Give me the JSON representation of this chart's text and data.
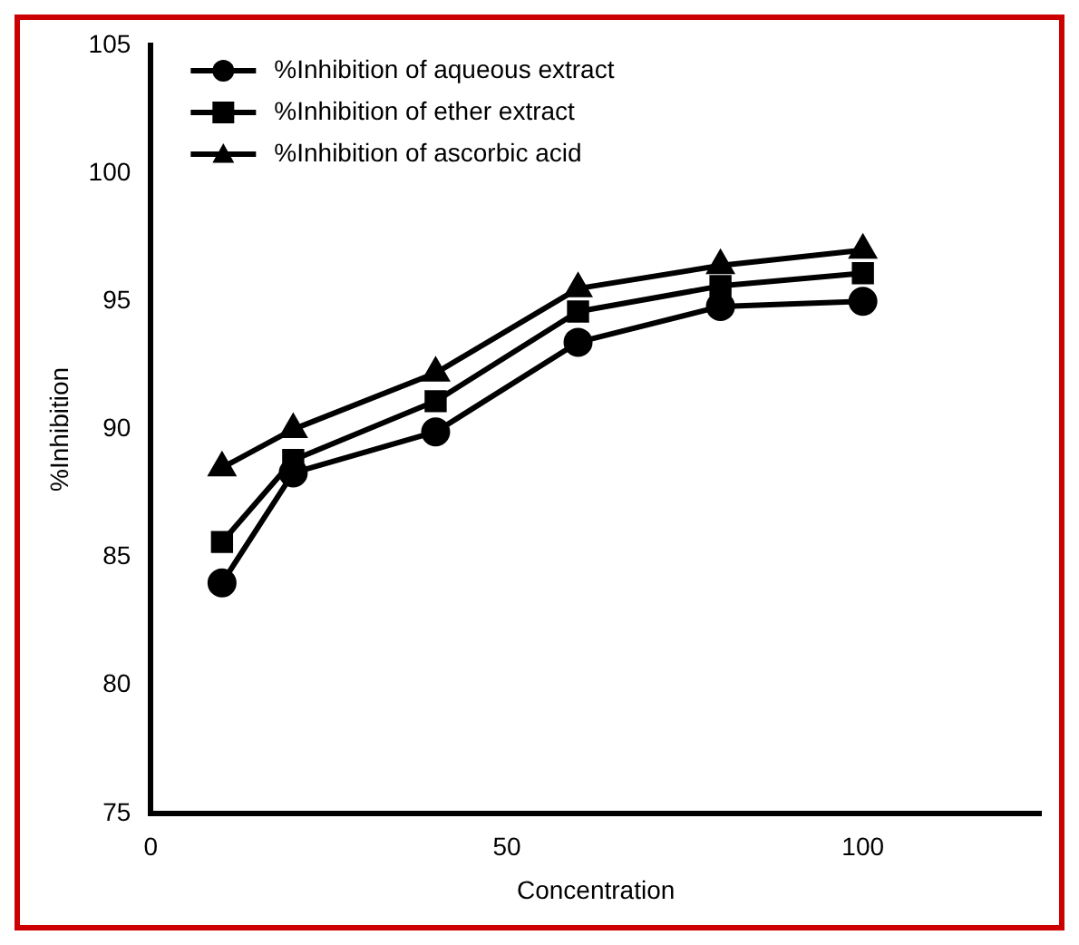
{
  "chart_data": {
    "type": "line",
    "xlabel": "Concentration",
    "ylabel": "%Inhibition",
    "x": [
      10,
      20,
      40,
      60,
      80,
      100
    ],
    "series": [
      {
        "name": "%Inhibition of aqueous extract",
        "color": "#000000",
        "marker": "circle",
        "values": [
          84.0,
          88.3,
          89.9,
          93.4,
          94.8,
          95.0
        ]
      },
      {
        "name": "%Inhibition of ether extract",
        "color": "#000000",
        "marker": "square",
        "values": [
          85.6,
          88.8,
          91.1,
          94.6,
          95.6,
          96.1
        ]
      },
      {
        "name": "%Inhibition of ascorbic acid",
        "color": "#000000",
        "marker": "triangle",
        "values": [
          88.5,
          90.0,
          92.2,
          95.5,
          96.4,
          97.0
        ]
      }
    ],
    "xlim": [
      0,
      125
    ],
    "xticks": [
      0,
      50,
      100
    ],
    "ylim": [
      75,
      105
    ],
    "yticks": [
      75,
      80,
      85,
      90,
      95,
      100,
      105
    ],
    "grid": false,
    "legend": "top left",
    "line_style": "solid"
  }
}
